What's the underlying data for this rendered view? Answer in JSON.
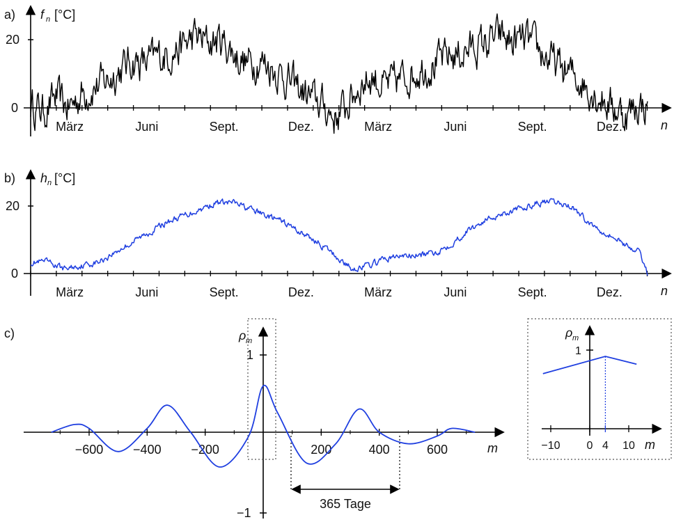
{
  "chart_data": [
    {
      "type": "line",
      "panel_label": "a)",
      "ylabel_var": "f",
      "ylabel_sub": "n",
      "ylabel_unit": "[°C]",
      "xlabel": "n",
      "x_ticklabels": [
        "März",
        "Juni",
        "Sept.",
        "Dez.",
        "März",
        "Juni",
        "Sept.",
        "Dez."
      ],
      "yticks": [
        0,
        20
      ],
      "ylim": [
        -8,
        26
      ],
      "xlim_days": [
        0,
        730
      ],
      "color": "#000000",
      "series": [
        {
          "x": [
            0,
            15,
            30,
            45,
            60,
            75,
            90,
            105,
            120,
            135,
            150,
            165,
            180,
            195,
            210,
            225,
            240,
            255,
            270,
            285,
            300,
            315,
            330,
            345,
            360,
            375,
            390,
            405,
            420,
            435,
            450,
            465,
            480,
            495,
            510,
            525,
            540,
            555,
            570,
            585,
            600,
            615,
            630,
            645,
            660,
            675,
            690,
            705,
            720,
            730
          ],
          "values": [
            1,
            -1,
            3,
            0,
            4,
            6,
            8,
            11,
            14,
            13,
            15,
            16,
            18,
            21,
            19,
            20,
            16,
            13,
            14,
            12,
            9,
            6,
            3,
            1,
            -3,
            1,
            7,
            9,
            6,
            8,
            10,
            12,
            13,
            15,
            16,
            18,
            19,
            21,
            19,
            20,
            17,
            14,
            11,
            9,
            6,
            3,
            0,
            -2,
            1,
            0
          ]
        }
      ]
    },
    {
      "type": "line",
      "panel_label": "b)",
      "ylabel_var": "h",
      "ylabel_sub": "n",
      "ylabel_unit": "[°C]",
      "xlabel": "n",
      "x_ticklabels": [
        "März",
        "Juni",
        "Sept.",
        "Dez.",
        "März",
        "Juni",
        "Sept.",
        "Dez."
      ],
      "yticks": [
        0,
        20
      ],
      "ylim": [
        -2,
        26
      ],
      "xlim_days": [
        0,
        730
      ],
      "color": "#1f3fe0",
      "series": [
        {
          "x": [
            0,
            20,
            40,
            60,
            80,
            100,
            120,
            140,
            160,
            180,
            200,
            220,
            240,
            260,
            280,
            300,
            320,
            340,
            360,
            380,
            400,
            420,
            440,
            460,
            480,
            500,
            520,
            540,
            560,
            580,
            600,
            620,
            640,
            660,
            680,
            700,
            720,
            730
          ],
          "values": [
            3,
            3,
            1,
            2,
            3,
            6,
            9,
            12,
            15,
            17,
            19,
            21,
            21,
            19,
            17,
            15,
            12,
            9,
            5,
            1,
            2,
            4,
            5,
            5,
            6,
            9,
            13,
            16,
            18,
            19,
            21,
            21,
            20,
            15,
            12,
            9,
            6,
            0
          ]
        }
      ]
    },
    {
      "type": "line",
      "panel_label": "c)",
      "ylabel_var": "ρ",
      "ylabel_sub": "m",
      "xlabel": "m",
      "x_ticklabels": [
        "−600",
        "−400",
        "−200",
        "200",
        "400",
        "600"
      ],
      "x_ticks": [
        -600,
        -400,
        -200,
        200,
        400,
        600
      ],
      "y_ticklabels": [
        "1",
        "−1"
      ],
      "xlim": [
        -730,
        730
      ],
      "ylim": [
        -1,
        1
      ],
      "annotation": "365 Tage",
      "color": "#1f3fe0",
      "series": [
        {
          "x": [
            -730,
            -650,
            -600,
            -500,
            -400,
            -330,
            -250,
            -150,
            -50,
            0,
            50,
            150,
            250,
            330,
            400,
            500,
            600,
            650,
            730
          ],
          "values": [
            0.0,
            0.1,
            0.05,
            -0.25,
            0.05,
            0.35,
            0.0,
            -0.45,
            -0.05,
            0.6,
            0.25,
            -0.4,
            -0.15,
            0.3,
            0.0,
            -0.15,
            -0.05,
            0.05,
            0.0
          ]
        }
      ],
      "inset": {
        "ylabel_var": "ρ",
        "ylabel_sub": "m",
        "xlabel": "m",
        "x_ticklabels": [
          "−10",
          "0",
          "4",
          "10"
        ],
        "x_ticks": [
          -10,
          0,
          4,
          10
        ],
        "y_ticklabels": [
          "1"
        ],
        "highlight_x": 4,
        "xlim": [
          -12,
          14
        ],
        "ylim": [
          0,
          1.2
        ],
        "series": [
          {
            "x": [
              -12,
              4,
              12
            ],
            "values": [
              0.7,
              0.92,
              0.82
            ]
          }
        ]
      }
    }
  ]
}
